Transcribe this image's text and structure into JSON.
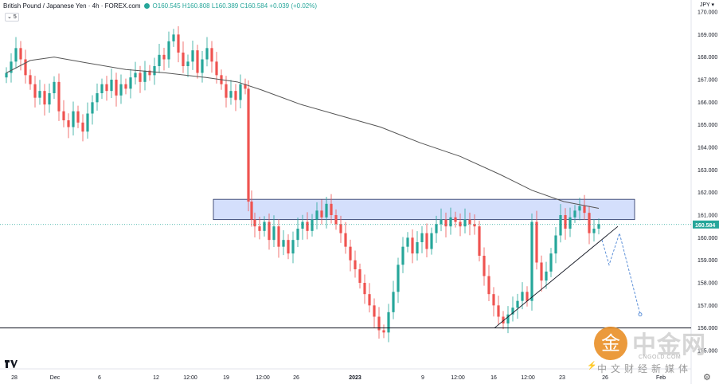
{
  "header": {
    "symbol": "British Pound / Japanese Yen · 4h · FOREX.com",
    "open": "O160.545",
    "high": "H160.808",
    "low": "L160.389",
    "close": "C160.584",
    "change": "+0.039 (+0.02%)",
    "indicator_count": "5"
  },
  "currency": "JPY",
  "watermark": {
    "main": "中金网",
    "site": "CNGOLD.COM",
    "sub": "中文财经新媒体",
    "badge": "金"
  },
  "chart_data": {
    "type": "line",
    "title": "British Pound / Japanese Yen · 4h · FOREX.com",
    "ylim": [
      154,
      170.5
    ],
    "y_ticks": [
      155.0,
      156.0,
      157.0,
      158.0,
      159.0,
      160.0,
      161.0,
      162.0,
      163.0,
      164.0,
      165.0,
      166.0,
      167.0,
      168.0,
      169.0,
      170.0
    ],
    "y_tick_labels": [
      "155.000",
      "156.000",
      "157.000",
      "158.000",
      "159.000",
      "160.000",
      "161.000",
      "162.000",
      "163.000",
      "164.000",
      "165.000",
      "166.000",
      "167.000",
      "168.000",
      "169.000",
      "170.000"
    ],
    "x_tick_labels": [
      "28",
      "Dec",
      "6",
      "12",
      "12:00",
      "19",
      "12:00",
      "26",
      "2023",
      "9",
      "12:00",
      "16",
      "12:00",
      "23",
      "26",
      "Feb"
    ],
    "last_price": 160.584,
    "last_price_label": "160.584",
    "colors": {
      "up": "#26a69a",
      "down": "#ef5350",
      "ma": "#555555",
      "zone": "#c6d4fb",
      "zone_border": "#1e2b5a",
      "projection": "#5b8fd8"
    },
    "series": [
      {
        "kind": "price",
        "x": [
          0,
          6,
          12,
          18,
          24,
          30,
          36,
          42,
          48,
          54,
          60,
          66,
          72,
          78,
          84,
          90,
          96,
          102,
          108,
          114,
          120,
          126,
          132,
          138,
          144,
          150,
          156,
          162,
          168,
          174,
          180,
          186,
          192,
          198,
          204,
          210,
          216,
          222,
          228,
          234,
          240,
          246,
          252,
          258,
          264,
          270,
          276,
          282,
          288,
          294,
          300,
          304,
          308,
          312,
          318,
          324,
          330,
          336,
          342,
          348,
          354,
          360,
          366,
          372,
          378,
          384,
          390,
          396,
          402,
          408,
          414,
          420,
          426,
          432,
          438,
          444,
          450,
          456,
          462,
          468,
          474,
          480,
          486,
          492,
          498,
          504,
          510,
          516,
          522,
          528,
          534,
          540,
          546,
          552,
          558,
          564,
          570,
          576,
          582,
          588,
          594,
          600,
          606,
          612,
          618,
          624,
          630,
          636,
          642,
          648,
          654,
          660,
          666,
          672,
          678,
          684,
          690,
          696,
          702,
          708,
          714,
          720,
          726,
          732,
          738,
          744
        ],
        "values": [
          167.3,
          167.8,
          168.4,
          167.9,
          167.2,
          166.8,
          166.2,
          166.5,
          165.9,
          166.4,
          166.9,
          165.6,
          165.2,
          164.9,
          165.6,
          165.1,
          164.7,
          165.5,
          166.0,
          166.4,
          166.8,
          166.5,
          167.0,
          166.3,
          166.8,
          166.6,
          167.1,
          167.3,
          166.9,
          167.4,
          167.2,
          167.6,
          168.1,
          167.9,
          168.7,
          169.0,
          168.2,
          167.6,
          167.8,
          168.3,
          167.3,
          167.9,
          168.4,
          167.8,
          167.2,
          166.8,
          166.2,
          166.5,
          166.1,
          166.8,
          166.6,
          161.6,
          160.8,
          160.5,
          160.3,
          160.7,
          159.9,
          160.5,
          159.6,
          159.9,
          159.3,
          159.9,
          160.4,
          160.7,
          160.3,
          160.8,
          161.2,
          160.9,
          161.5,
          161.0,
          160.6,
          160.2,
          159.6,
          159.0,
          158.6,
          158.0,
          157.5,
          157.0,
          156.5,
          155.9,
          155.8,
          156.7,
          157.6,
          158.8,
          159.6,
          160.0,
          159.3,
          159.8,
          160.2,
          159.5,
          160.2,
          160.6,
          160.8,
          160.5,
          160.9,
          160.7,
          160.5,
          160.8,
          160.6,
          160.5,
          159.2,
          158.3,
          157.5,
          157.0,
          156.5,
          156.2,
          156.6,
          156.9,
          157.2,
          157.6,
          157.2,
          160.7,
          158.9,
          158.1,
          158.5,
          159.3,
          160.1,
          161.0,
          160.4,
          160.9,
          161.2,
          161.4,
          161.1,
          160.2,
          160.4,
          160.6
        ]
      },
      {
        "kind": "moving_average",
        "x": [
          0,
          30,
          60,
          100,
          150,
          200,
          250,
          290,
          320,
          370,
          420,
          470,
          520,
          570,
          620,
          660,
          700,
          744
        ],
        "values": [
          167.3,
          167.85,
          168.0,
          167.75,
          167.45,
          167.3,
          167.1,
          166.9,
          166.55,
          165.9,
          165.4,
          164.9,
          164.2,
          163.6,
          162.8,
          162.1,
          161.6,
          161.3
        ]
      },
      {
        "kind": "projection",
        "x": [
          748,
          757,
          770,
          796
        ],
        "values": [
          159.9,
          158.8,
          160.2,
          156.6
        ]
      }
    ],
    "resistance_zone": [
      160.8,
      161.7
    ],
    "support_line": 156.0,
    "trendline": {
      "x": [
        613,
        768
      ],
      "values": [
        156.0,
        160.5
      ]
    }
  }
}
